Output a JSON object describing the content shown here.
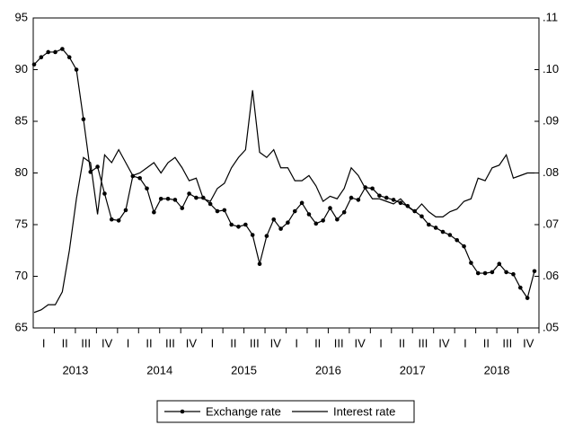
{
  "chart_data": {
    "type": "line",
    "quarter_labels": [
      "I",
      "II",
      "III",
      "IV",
      "I",
      "II",
      "III",
      "IV",
      "I",
      "II",
      "III",
      "IV",
      "I",
      "II",
      "III",
      "IV",
      "I",
      "II",
      "III",
      "IV",
      "I",
      "II",
      "III",
      "IV"
    ],
    "year_labels": [
      "2013",
      "2014",
      "2015",
      "2016",
      "2017",
      "2018"
    ],
    "ylim": [
      65,
      95
    ],
    "yticks": [
      65,
      70,
      75,
      80,
      85,
      90,
      95
    ],
    "y2lim": [
      0.05,
      0.11
    ],
    "y2ticks": [
      {
        "value": 0.05,
        "label": ".05"
      },
      {
        "value": 0.06,
        "label": ".06"
      },
      {
        "value": 0.07,
        "label": ".07"
      },
      {
        "value": 0.08,
        "label": ".08"
      },
      {
        "value": 0.09,
        "label": ".09"
      },
      {
        "value": 0.1,
        "label": ".10"
      },
      {
        "value": 0.11,
        "label": ".11"
      }
    ],
    "series": [
      {
        "name": "Exchange rate",
        "color": "#000000",
        "marker": true,
        "values": [
          90.5,
          91.2,
          91.7,
          91.7,
          92.0,
          91.2,
          90.0,
          85.2,
          80.1,
          80.6,
          78.0,
          75.5,
          75.4,
          76.4,
          79.7,
          79.5,
          78.5,
          76.2,
          77.5,
          77.5,
          77.4,
          76.6,
          78.0,
          77.6,
          77.6,
          77.0,
          76.3,
          76.4,
          75.0,
          74.8,
          75.0,
          74.0,
          71.2,
          73.9,
          75.5,
          74.6,
          75.2,
          76.3,
          77.1,
          76.0,
          75.1,
          75.4,
          76.6,
          75.5,
          76.2,
          77.6,
          77.4,
          78.6,
          78.5,
          77.8,
          77.6,
          77.4,
          77.1,
          76.8,
          76.3,
          75.8,
          75.0,
          74.7,
          74.3,
          74.0,
          73.5,
          72.9,
          71.3,
          70.3,
          70.3,
          70.4,
          71.2,
          70.4,
          70.2,
          68.9,
          67.9,
          70.5
        ]
      },
      {
        "name": "Interest rate",
        "color": "#000000",
        "marker": false,
        "axis": "y2",
        "values": [
          0.053,
          0.0535,
          0.0545,
          0.0545,
          0.057,
          0.065,
          0.075,
          0.083,
          0.082,
          0.072,
          0.0835,
          0.082,
          0.0845,
          0.082,
          0.0795,
          0.08,
          0.081,
          0.082,
          0.08,
          0.082,
          0.083,
          0.081,
          0.0785,
          0.079,
          0.075,
          0.0745,
          0.077,
          0.078,
          0.081,
          0.083,
          0.0845,
          0.096,
          0.084,
          0.083,
          0.0845,
          0.081,
          0.081,
          0.0785,
          0.0785,
          0.0795,
          0.0775,
          0.0745,
          0.0755,
          0.075,
          0.077,
          0.081,
          0.0795,
          0.077,
          0.075,
          0.075,
          0.0745,
          0.074,
          0.075,
          0.0735,
          0.0725,
          0.074,
          0.0725,
          0.0715,
          0.0715,
          0.0725,
          0.073,
          0.0745,
          0.075,
          0.079,
          0.0785,
          0.081,
          0.0815,
          0.0835,
          0.079,
          0.0795,
          0.08,
          0.08
        ]
      }
    ]
  }
}
